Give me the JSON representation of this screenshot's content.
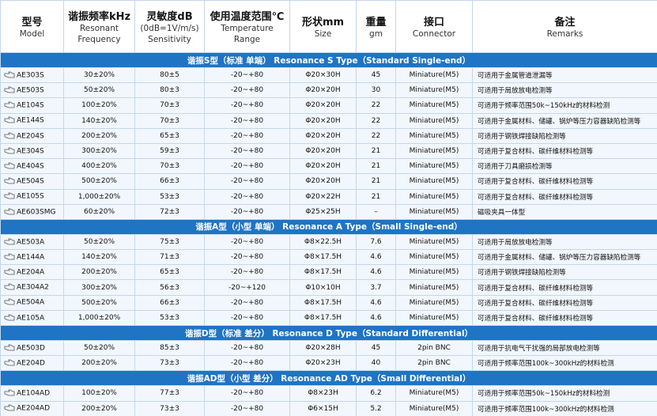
{
  "header": [
    [
      "型号",
      "Model"
    ],
    [
      "谐振频率kHz",
      "Resonant",
      "Frequency"
    ],
    [
      "灵敏度dB",
      "(0dB=1V/m/s)",
      "Sensitivity"
    ],
    [
      "使用温度范围℃",
      "Temperature",
      "Range"
    ],
    [
      "形状mm",
      "Size"
    ],
    [
      "重量",
      "gm"
    ],
    [
      "接口",
      "Connector"
    ],
    [
      "备注",
      "Remarks"
    ]
  ],
  "sections": [
    {
      "title": "谐振S型（标准 单端）  Resonance S Type（Standard Single-end）",
      "rows": [
        [
          "AE303S",
          "30±20%",
          "80±5",
          "-20~+80",
          "Φ20×30H",
          "45",
          "Miniature(M5)",
          "可适用于金属管道泄漏等"
        ],
        [
          "AE503S",
          "50±20%",
          "80±3",
          "-20~+80",
          "Φ20×20H",
          "30",
          "Miniature(M5)",
          "可适用于局放放电检测等"
        ],
        [
          "AE104S",
          "100±20%",
          "70±3",
          "-20~+80",
          "Φ20×20H",
          "22",
          "Miniature(M5)",
          "可适用于频率范围50k~150kHz的材料检测"
        ],
        [
          "AE144S",
          "140±20%",
          "70±3",
          "-20~+80",
          "Φ20×20H",
          "22",
          "Miniature(M5)",
          "可适用于金属材料、储罐、锅炉等压力容器缺陷检测等"
        ],
        [
          "AE204S",
          "200±20%",
          "65±3",
          "-20~+80",
          "Φ20×20H",
          "22",
          "Miniature(M5)",
          "可适用于钢铁焊接缺陷检测等"
        ],
        [
          "AE304S",
          "300±20%",
          "59±3",
          "-20~+80",
          "Φ20×20H",
          "21",
          "Miniature(M5)",
          "可适用于复合材料、碳纤维材料检测等"
        ],
        [
          "AE404S",
          "400±20%",
          "70±3",
          "-20~+80",
          "Φ20×20H",
          "21",
          "Miniature(M5)",
          "可适用于刀具磨损检测等"
        ],
        [
          "AE504S",
          "500±20%",
          "66±3",
          "-20~+80",
          "Φ20×20H",
          "21",
          "Miniature(M5)",
          "可适用于复合材料、碳纤维材料检测等"
        ],
        [
          "AE105S",
          "1,000±20%",
          "53±3",
          "-20~+80",
          "Φ20×22H",
          "21",
          "Miniature(M5)",
          "可适用于复合材料、碳纤维材料检测等"
        ],
        [
          "AE603SMG",
          "60±20%",
          "72±3",
          "-20~+80",
          "Φ25×25H",
          "–",
          "Miniature(M5)",
          "磁吸夹具一体型"
        ]
      ]
    },
    {
      "title": "谐振A型（小型 单端）  Resonance A Type（Small Single-end）",
      "rows": [
        [
          "AE503A",
          "50±20%",
          "75±3",
          "-20~+80",
          "Φ8×22.5H",
          "7.6",
          "Miniature(M5)",
          "可适用于局放放电检测等"
        ],
        [
          "AE144A",
          "140±20%",
          "71±3",
          "-20~+80",
          "Φ8×17.5H",
          "4.6",
          "Miniature(M5)",
          "可适用于金属材料、储罐、锅炉等压力容器缺陷检测等"
        ],
        [
          "AE204A",
          "200±20%",
          "65±3",
          "-20~+80",
          "Φ8×17.5H",
          "4.6",
          "Miniature(M5)",
          "可适用于钢铁焊接缺陷检测等"
        ],
        [
          "AE304A2",
          "300±20%",
          "56±3",
          "-20~+120",
          "Φ10×10H",
          "3.7",
          "Miniature(M5)",
          "可适用于复合材料、碳纤维材料检测等"
        ],
        [
          "AE504A",
          "500±20%",
          "66±3",
          "-20~+80",
          "Φ8×17.5H",
          "4.6",
          "Miniature(M5)",
          "可适用于复合材料、碳纤维材料检测等"
        ],
        [
          "AE105A",
          "1,000±20%",
          "53±3",
          "-20~+80",
          "Φ8×17.5H",
          "4.6",
          "Miniature(M5)",
          "可适用于复合材料、碳纤维材料检测等"
        ]
      ]
    },
    {
      "title": "谐振D型（标准 差分）  Resonance D Type（Standard Differential）",
      "rows": [
        [
          "AE503D",
          "50±20%",
          "85±3",
          "-20~+80",
          "Φ20×28H",
          "45",
          "2pin BNC",
          "可适用于抗电气干扰强的局部放电检测等"
        ],
        [
          "AE204D",
          "200±20%",
          "73±3",
          "-20~+80",
          "Φ20×23H",
          "40",
          "2pin BNC",
          "可适用于频率范围100k~300kHz的材料检测"
        ]
      ]
    },
    {
      "title": "谐振AD型（小型 差分）  Resonance AD Type（Small Differential）",
      "rows": [
        [
          "AE104AD",
          "100±20%",
          "77±3",
          "-20~+80",
          "Φ8×23H",
          "6.2",
          "Miniature(M5)",
          "可适用于频率范围50k~150kHz的材料检测"
        ],
        [
          "AE204AD",
          "200±20%",
          "73±3",
          "-20~+80",
          "Φ6×15H",
          "5.2",
          "Miniature(M5)",
          "可适用于频率范围100k~300kHz的材料检测"
        ]
      ]
    }
  ]
}
